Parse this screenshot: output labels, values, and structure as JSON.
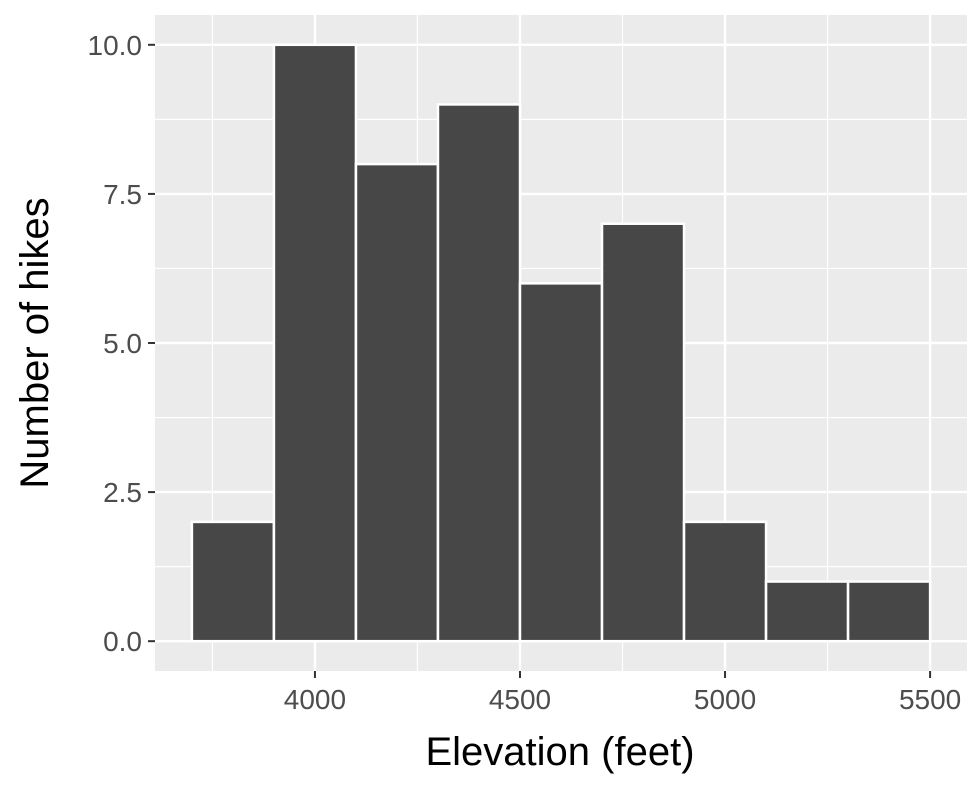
{
  "chart_data": {
    "type": "bar",
    "subtype": "histogram",
    "title": "",
    "xlabel": "Elevation (feet)",
    "ylabel": "Number of hikes",
    "xlim": [
      3610,
      5590
    ],
    "ylim": [
      -0.5,
      10.5
    ],
    "x_ticks": [
      4000,
      4500,
      5000,
      5500
    ],
    "x_tick_labels": [
      "4000",
      "4500",
      "5000",
      "5500"
    ],
    "y_ticks": [
      0,
      2.5,
      5,
      7.5,
      10
    ],
    "y_tick_labels": [
      "0.0",
      "2.5",
      "5.0",
      "7.5",
      "10.0"
    ],
    "bins": [
      {
        "x0": 3700,
        "x1": 3900,
        "count": 2
      },
      {
        "x0": 3900,
        "x1": 4100,
        "count": 10
      },
      {
        "x0": 4100,
        "x1": 4300,
        "count": 8
      },
      {
        "x0": 4300,
        "x1": 4500,
        "count": 9
      },
      {
        "x0": 4500,
        "x1": 4700,
        "count": 6
      },
      {
        "x0": 4700,
        "x1": 4900,
        "count": 7
      },
      {
        "x0": 4900,
        "x1": 5100,
        "count": 2
      },
      {
        "x0": 5100,
        "x1": 5300,
        "count": 1
      },
      {
        "x0": 5300,
        "x1": 5500,
        "count": 1
      }
    ],
    "grid": true,
    "colors": {
      "panel": "#ebebeb",
      "grid": "#ffffff",
      "bar_fill": "#474747",
      "bar_outline": "#ffffff",
      "tick_text": "#4d4d4d"
    }
  }
}
